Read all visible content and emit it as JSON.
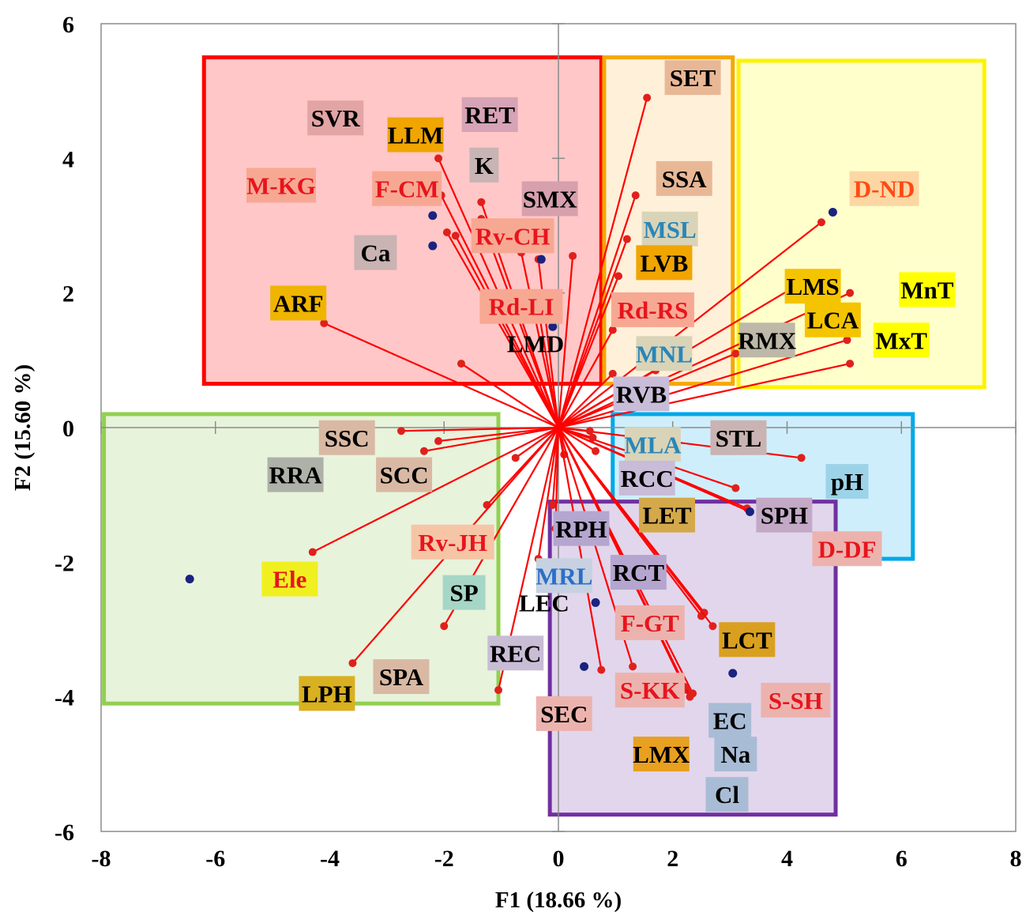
{
  "chart_data": {
    "type": "scatter",
    "subtype": "pca-biplot",
    "xlabel": "F1 (18.66 %)",
    "ylabel": "F2 (15.60 %)",
    "xlim": [
      -8,
      8
    ],
    "ylim": [
      -6,
      6
    ],
    "xticks": [
      "-8",
      "-6",
      "-4",
      "-2",
      "0",
      "2",
      "4",
      "6",
      "8"
    ],
    "yticks": [
      "6",
      "4",
      "2",
      "0",
      "-2",
      "-4",
      "-6"
    ],
    "grid": false,
    "colors": {
      "vector": "#ff0000",
      "vector_end": "#e0201c",
      "observation": "#1a237e",
      "group_red": "#ff0000",
      "group_orange": "#f5a800",
      "group_yellow": "#fff200",
      "group_green": "#92d050",
      "group_blue": "#00a8e8",
      "group_purple": "#7030a0"
    },
    "groups": [
      {
        "name": "red",
        "x0": -6.2,
        "y0": 0.65,
        "x1": 0.75,
        "y1": 5.5,
        "stroke": "#ff0000",
        "fill": "#ffc7c7"
      },
      {
        "name": "orange",
        "x0": 0.8,
        "y0": 0.65,
        "x1": 3.05,
        "y1": 5.5,
        "stroke": "#f5a800",
        "fill": "#fff0d9"
      },
      {
        "name": "yellow",
        "x0": 3.15,
        "y0": 0.6,
        "x1": 7.45,
        "y1": 5.45,
        "stroke": "#fff200",
        "fill": "#ffffcc"
      },
      {
        "name": "green",
        "x0": -7.95,
        "y0": -4.1,
        "x1": -1.05,
        "y1": 0.2,
        "stroke": "#92d050",
        "fill": "#e8f3dc"
      },
      {
        "name": "blue",
        "x0": 0.95,
        "y0": -1.95,
        "x1": 6.2,
        "y1": 0.2,
        "stroke": "#00a8e8",
        "fill": "#cfeefb"
      },
      {
        "name": "purple",
        "x0": -0.15,
        "y0": -5.75,
        "x1": 4.85,
        "y1": -1.1,
        "stroke": "#7030a0",
        "fill": "#e2d6ec"
      }
    ],
    "observations": [
      {
        "x": -2.2,
        "y": 3.15
      },
      {
        "x": -2.2,
        "y": 2.7
      },
      {
        "x": -0.3,
        "y": 2.5
      },
      {
        "x": -0.1,
        "y": 1.5
      },
      {
        "x": 4.8,
        "y": 3.2
      },
      {
        "x": 3.35,
        "y": -1.25
      },
      {
        "x": 0.65,
        "y": -2.6
      },
      {
        "x": 0.45,
        "y": -3.55
      },
      {
        "x": 3.05,
        "y": -3.65
      },
      {
        "x": -6.45,
        "y": -2.25
      }
    ],
    "variables": [
      {
        "label": "SVR",
        "x": -2.05,
        "y": 3.45,
        "tx": -3.9,
        "ty": 4.6,
        "bg": "#e2a4a4",
        "fg": "#000000"
      },
      {
        "label": "RET",
        "x": -1.35,
        "y": 3.35,
        "tx": -1.2,
        "ty": 4.65,
        "bg": "#d7a3b6",
        "fg": "#000000"
      },
      {
        "label": "LLM",
        "x": -2.1,
        "y": 4.0,
        "tx": -2.5,
        "ty": 4.35,
        "bg": "#f0a500",
        "fg": "#000000"
      },
      {
        "label": "K",
        "x": -1.35,
        "y": 3.1,
        "tx": -1.3,
        "ty": 3.9,
        "bg": "#c8b4b4",
        "fg": "#000000"
      },
      {
        "label": "M-KG",
        "x": -1.95,
        "y": 2.9,
        "tx": -4.85,
        "ty": 3.6,
        "bg": "#f7a893",
        "fg": "#e8141c"
      },
      {
        "label": "F-CM",
        "x": -1.8,
        "y": 2.85,
        "tx": -2.65,
        "ty": 3.55,
        "bg": "#f7a893",
        "fg": "#e8141c"
      },
      {
        "label": "SMX",
        "x": -0.65,
        "y": 2.6,
        "tx": -0.15,
        "ty": 3.4,
        "bg": "#d7a0ad",
        "fg": "#000000"
      },
      {
        "label": "Rv-CH",
        "x": -0.35,
        "y": 2.5,
        "tx": -0.8,
        "ty": 2.85,
        "bg": "#f7a893",
        "fg": "#e8141c"
      },
      {
        "label": "Ca",
        "x": 0.25,
        "y": 2.55,
        "tx": -3.2,
        "ty": 2.6,
        "bg": "#c9b3b3",
        "fg": "#000000"
      },
      {
        "label": "ARF",
        "x": -4.1,
        "y": 1.55,
        "tx": -4.55,
        "ty": 1.85,
        "bg": "#f0b500",
        "fg": "#000000"
      },
      {
        "label": "Rd-LI",
        "x": -0.35,
        "y": 1.75,
        "tx": -0.65,
        "ty": 1.8,
        "bg": "#f7a893",
        "fg": "#e8141c"
      },
      {
        "label": "LMD",
        "x": -1.7,
        "y": 0.95,
        "tx": -0.4,
        "ty": 1.25,
        "bg": "none",
        "fg": "#000000"
      },
      {
        "label": "SET",
        "x": 1.55,
        "y": 4.9,
        "tx": 2.35,
        "ty": 5.2,
        "bg": "#e8b896",
        "fg": "#000000"
      },
      {
        "label": "SSA",
        "x": 1.35,
        "y": 3.45,
        "tx": 2.2,
        "ty": 3.7,
        "bg": "#e8b896",
        "fg": "#000000"
      },
      {
        "label": "MSL",
        "x": 1.2,
        "y": 2.8,
        "tx": 1.95,
        "ty": 2.95,
        "bg": "#d9d4b8",
        "fg": "#2a86b8"
      },
      {
        "label": "LVB",
        "x": 1.05,
        "y": 2.25,
        "tx": 1.85,
        "ty": 2.45,
        "bg": "#f0a500",
        "fg": "#000000"
      },
      {
        "label": "Rd-RS",
        "x": 0.95,
        "y": 1.45,
        "tx": 1.65,
        "ty": 1.75,
        "bg": "#f7a893",
        "fg": "#e8141c"
      },
      {
        "label": "MNL",
        "x": 1.7,
        "y": 0.85,
        "tx": 1.85,
        "ty": 1.1,
        "bg": "#d9d4b8",
        "fg": "#2a86b8"
      },
      {
        "label": "RMX",
        "x": 3.1,
        "y": 1.1,
        "tx": 3.65,
        "ty": 1.3,
        "bg": "#bdb8a8",
        "fg": "#000000"
      },
      {
        "label": "RVB",
        "x": 0.95,
        "y": 0.8,
        "tx": 1.45,
        "ty": 0.5,
        "bg": "#c8bcd8",
        "fg": "#000000"
      },
      {
        "label": "D-ND",
        "x": 4.6,
        "y": 3.05,
        "tx": 5.7,
        "ty": 3.55,
        "bg": "#fcd7a4",
        "fg": "#ff4a14"
      },
      {
        "label": "LMS",
        "x": 4.05,
        "y": 2.05,
        "tx": 4.45,
        "ty": 2.1,
        "bg": "#f5c400",
        "fg": "#000000"
      },
      {
        "label": "MnT",
        "x": 5.1,
        "y": 2.0,
        "tx": 6.45,
        "ty": 2.05,
        "bg": "#ffff00",
        "fg": "#000000"
      },
      {
        "label": "LCA",
        "x": 5.05,
        "y": 1.3,
        "tx": 4.8,
        "ty": 1.6,
        "bg": "#f5c400",
        "fg": "#000000"
      },
      {
        "label": "MxT",
        "x": 5.1,
        "y": 0.95,
        "tx": 6.0,
        "ty": 1.3,
        "bg": "#ffff00",
        "fg": "#000000"
      },
      {
        "label": "STL",
        "x": 4.25,
        "y": -0.45,
        "tx": 3.15,
        "ty": -0.15,
        "bg": "#c9b3b3",
        "fg": "#000000"
      },
      {
        "label": "MLA",
        "x": 0.65,
        "y": -0.35,
        "tx": 1.65,
        "ty": -0.25,
        "bg": "#d9d4b8",
        "fg": "#2a86b8"
      },
      {
        "label": "RCC",
        "x": 3.1,
        "y": -0.9,
        "tx": 1.55,
        "ty": -0.75,
        "bg": "#c8bcd8",
        "fg": "#000000"
      },
      {
        "label": "pH",
        "x": 0.6,
        "y": -0.15,
        "tx": 5.05,
        "ty": -0.8,
        "bg": "#9cd3e8",
        "fg": "#000000"
      },
      {
        "label": "LET",
        "x": 0.55,
        "y": -0.05,
        "tx": 1.9,
        "ty": -1.3,
        "bg": "#d4a94b",
        "fg": "#000000"
      },
      {
        "label": "SPH",
        "x": 3.3,
        "y": -1.2,
        "tx": 3.95,
        "ty": -1.3,
        "bg": "#c3a9c6",
        "fg": "#000000"
      },
      {
        "label": "D-DF",
        "x": 3.35,
        "y": -1.25,
        "tx": 5.05,
        "ty": -1.8,
        "bg": "#ecb3ae",
        "fg": "#e8141c"
      },
      {
        "label": "SSC",
        "x": -2.75,
        "y": -0.05,
        "tx": -3.7,
        "ty": -0.15,
        "bg": "#d9b9a3",
        "fg": "#000000"
      },
      {
        "label": "RRA",
        "x": -2.35,
        "y": -0.35,
        "tx": -4.6,
        "ty": -0.7,
        "bg": "#aeb1a8",
        "fg": "#000000"
      },
      {
        "label": "SCC",
        "x": -2.1,
        "y": -0.2,
        "tx": -2.7,
        "ty": -0.7,
        "bg": "#d9b9a3",
        "fg": "#000000"
      },
      {
        "label": "Rv-JH",
        "x": -0.75,
        "y": -0.45,
        "tx": -1.85,
        "ty": -1.7,
        "bg": "#f5c5a6",
        "fg": "#e8141c"
      },
      {
        "label": "RPH",
        "x": 0.1,
        "y": -0.4,
        "tx": 0.4,
        "ty": -1.5,
        "bg": "#b4a6cf",
        "fg": "#000000"
      },
      {
        "label": "Ele",
        "x": -4.3,
        "y": -1.85,
        "tx": -4.7,
        "ty": -2.25,
        "bg": "#f0f020",
        "fg": "#e8141c"
      },
      {
        "label": "SP",
        "x": -1.25,
        "y": -1.15,
        "tx": -1.65,
        "ty": -2.45,
        "bg": "#a6d6c6",
        "fg": "#000000"
      },
      {
        "label": "MRL",
        "x": -0.1,
        "y": -1.15,
        "tx": 0.1,
        "ty": -2.2,
        "bg": "#c7d1e1",
        "fg": "#2a6fc8"
      },
      {
        "label": "RCT",
        "x": 2.55,
        "y": -2.75,
        "tx": 1.4,
        "ty": -2.15,
        "bg": "#b4a6cf",
        "fg": "#000000"
      },
      {
        "label": "LEC",
        "x": -0.05,
        "y": -1.5,
        "tx": -0.25,
        "ty": -2.6,
        "bg": "none",
        "fg": "#000000"
      },
      {
        "label": "F-GT",
        "x": 2.5,
        "y": -2.8,
        "tx": 1.6,
        "ty": -2.9,
        "bg": "#ecb3ae",
        "fg": "#e8141c"
      },
      {
        "label": "LCT",
        "x": 2.7,
        "y": -2.95,
        "tx": 3.3,
        "ty": -3.15,
        "bg": "#d9a020",
        "fg": "#000000"
      },
      {
        "label": "REC",
        "x": -0.35,
        "y": -1.95,
        "tx": -0.75,
        "ty": -3.35,
        "bg": "#c9bdd6",
        "fg": "#000000"
      },
      {
        "label": "SPA",
        "x": -2.0,
        "y": -2.95,
        "tx": -2.75,
        "ty": -3.7,
        "bg": "#d9b9a3",
        "fg": "#000000"
      },
      {
        "label": "LPH",
        "x": -3.6,
        "y": -3.5,
        "tx": -4.05,
        "ty": -3.95,
        "bg": "#d9b020",
        "fg": "#000000"
      },
      {
        "label": "S-KK",
        "x": 1.3,
        "y": -3.55,
        "tx": 1.6,
        "ty": -3.9,
        "bg": "#ecb3ae",
        "fg": "#e8141c"
      },
      {
        "label": "S-SH",
        "x": 2.35,
        "y": -3.95,
        "tx": 4.15,
        "ty": -4.05,
        "bg": "#ecb3ae",
        "fg": "#e8141c"
      },
      {
        "label": "SEC",
        "x": 0.75,
        "y": -3.6,
        "tx": 0.1,
        "ty": -4.25,
        "bg": "#ecb3ae",
        "fg": "#000000"
      },
      {
        "label": "EC",
        "x": 2.25,
        "y": -3.9,
        "tx": 3.0,
        "ty": -4.35,
        "bg": "#a9bcd6",
        "fg": "#000000"
      },
      {
        "label": "LMX",
        "x": 2.3,
        "y": -4.0,
        "tx": 1.8,
        "ty": -4.85,
        "bg": "#e8a020",
        "fg": "#000000"
      },
      {
        "label": "Na",
        "x": 2.2,
        "y": -3.85,
        "tx": 3.1,
        "ty": -4.85,
        "bg": "#a9bcd6",
        "fg": "#000000"
      },
      {
        "label": "Cl",
        "x": -1.05,
        "y": -3.9,
        "tx": 2.95,
        "ty": -5.45,
        "bg": "#a9bcd6",
        "fg": "#000000"
      }
    ]
  }
}
